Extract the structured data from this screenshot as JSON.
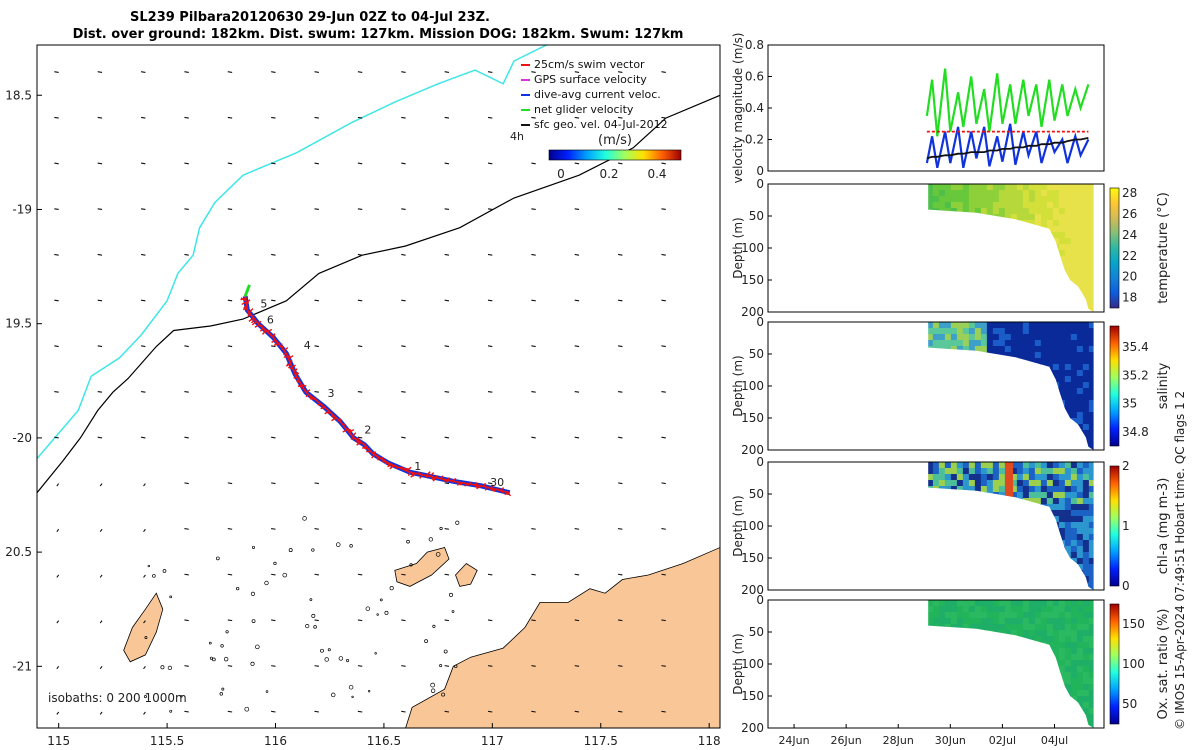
{
  "title_line1": "SL239 Pilbara20120630 29-Jun 02Z to 04-Jul 23Z.",
  "title_line2": "Dist. over ground: 182km. Dist. swum: 127km. Mission DOG: 182km. Swum: 127km",
  "footer_note": "© IMOS 15-Apr-2024 07:49:51 Hobart time. QC flags 1  2",
  "colors": {
    "land": "#f9c797",
    "coast_line": "#000000",
    "cyan_isobath": "#3ee6e6",
    "swim_vector": "#ee1111",
    "gps_velocity": "#dd33dd",
    "current_velocity": "#1133dd",
    "net_velocity": "#22dd22",
    "geo_velocity": "#111111"
  },
  "chart_data": [
    {
      "type": "map",
      "name": "track-map",
      "xlim": [
        114.9,
        118.05
      ],
      "ylim": [
        -21.27,
        -18.28
      ],
      "x_ticks": [
        115,
        115.5,
        116,
        116.5,
        117,
        117.5,
        118
      ],
      "x_tick_labels": [
        "115",
        "115.5",
        "116",
        "116.5",
        "117",
        "117.5",
        "118"
      ],
      "y_ticks": [
        -18.5,
        -19,
        -19.5,
        -20,
        -20.5,
        -21
      ],
      "y_tick_labels": [
        "18.5",
        "-19",
        "19.5",
        "-20",
        "20.5",
        "-21"
      ],
      "legend": {
        "items": [
          "25cm/s swim vector",
          "GPS surface velocity",
          "dive-avg current veloc.",
          "net glider velocity",
          "sfc geo. vel. 04-Jul-2012"
        ],
        "time_label": "4h",
        "colorbar_label": "(m/s)",
        "colorbar_ticks": [
          0,
          0.2,
          0.4
        ],
        "colorbar_tick_labels": [
          "0",
          "0.2",
          "0.4"
        ],
        "colorbar_range": [
          -0.05,
          0.5
        ]
      },
      "isobaths_label": "isobaths: 0    200   1000m",
      "track": [
        [
          117.08,
          -20.24
        ],
        [
          116.95,
          -20.21
        ],
        [
          116.82,
          -20.19
        ],
        [
          116.72,
          -20.17
        ],
        [
          116.62,
          -20.15
        ],
        [
          116.52,
          -20.11
        ],
        [
          116.45,
          -20.07
        ],
        [
          116.41,
          -20.03
        ],
        [
          116.36,
          -20.0
        ],
        [
          116.3,
          -19.93
        ],
        [
          116.22,
          -19.86
        ],
        [
          116.14,
          -19.8
        ],
        [
          116.09,
          -19.72
        ],
        [
          116.05,
          -19.63
        ],
        [
          115.99,
          -19.56
        ],
        [
          115.92,
          -19.5
        ],
        [
          115.87,
          -19.44
        ],
        [
          115.86,
          -19.38
        ]
      ],
      "day_markers": [
        {
          "label": "1",
          "lon": 116.64,
          "lat": -20.14
        },
        {
          "label": "2",
          "lon": 116.41,
          "lat": -19.98
        },
        {
          "label": "3",
          "lon": 116.24,
          "lat": -19.82
        },
        {
          "label": "4",
          "lon": 116.13,
          "lat": -19.61
        },
        {
          "label": "5",
          "lon": 115.93,
          "lat": -19.43
        },
        {
          "label": "6",
          "lon": 115.96,
          "lat": -19.5
        },
        {
          "label": "30",
          "lon": 116.99,
          "lat": -20.21
        }
      ],
      "isobath_200m": [
        [
          114.9,
          -20.09
        ],
        [
          115.0,
          -19.98
        ],
        [
          115.09,
          -19.88
        ],
        [
          115.15,
          -19.73
        ],
        [
          115.28,
          -19.65
        ],
        [
          115.38,
          -19.55
        ],
        [
          115.5,
          -19.4
        ],
        [
          115.55,
          -19.28
        ],
        [
          115.62,
          -19.2
        ],
        [
          115.65,
          -19.08
        ],
        [
          115.72,
          -18.97
        ],
        [
          115.85,
          -18.85
        ],
        [
          116.1,
          -18.75
        ],
        [
          116.35,
          -18.62
        ],
        [
          116.55,
          -18.53
        ],
        [
          116.75,
          -18.45
        ],
        [
          116.92,
          -18.39
        ],
        [
          117.05,
          -18.45
        ],
        [
          117.1,
          -18.35
        ],
        [
          117.25,
          -18.28
        ]
      ],
      "isobath_1000m": [
        [
          114.9,
          -20.24
        ],
        [
          115.02,
          -20.1
        ],
        [
          115.1,
          -20.0
        ],
        [
          115.18,
          -19.88
        ],
        [
          115.25,
          -19.8
        ],
        [
          115.32,
          -19.74
        ],
        [
          115.45,
          -19.6
        ],
        [
          115.53,
          -19.53
        ],
        [
          115.7,
          -19.51
        ],
        [
          115.85,
          -19.48
        ],
        [
          116.05,
          -19.4
        ],
        [
          116.2,
          -19.28
        ],
        [
          116.4,
          -19.2
        ],
        [
          116.6,
          -19.16
        ],
        [
          116.85,
          -19.08
        ],
        [
          117.1,
          -18.95
        ],
        [
          117.4,
          -18.85
        ],
        [
          117.65,
          -18.73
        ],
        [
          117.8,
          -18.6
        ],
        [
          118.05,
          -18.5
        ]
      ],
      "coast": [
        [
          116.6,
          -21.27
        ],
        [
          116.63,
          -21.18
        ],
        [
          116.78,
          -21.1
        ],
        [
          116.82,
          -21.0
        ],
        [
          116.9,
          -20.96
        ],
        [
          117.05,
          -20.92
        ],
        [
          117.15,
          -20.83
        ],
        [
          117.22,
          -20.72
        ],
        [
          117.35,
          -20.72
        ],
        [
          117.45,
          -20.66
        ],
        [
          117.52,
          -20.68
        ],
        [
          117.6,
          -20.62
        ],
        [
          117.72,
          -20.6
        ],
        [
          117.88,
          -20.55
        ],
        [
          118.05,
          -20.48
        ],
        [
          118.05,
          -21.27
        ]
      ],
      "islands": [
        [
          [
            115.3,
            -20.93
          ],
          [
            115.34,
            -20.83
          ],
          [
            115.4,
            -20.75
          ],
          [
            115.45,
            -20.68
          ],
          [
            115.48,
            -20.75
          ],
          [
            115.45,
            -20.85
          ],
          [
            115.4,
            -20.95
          ],
          [
            115.33,
            -20.98
          ]
        ],
        [
          [
            116.55,
            -20.58
          ],
          [
            116.65,
            -20.55
          ],
          [
            116.7,
            -20.5
          ],
          [
            116.78,
            -20.48
          ],
          [
            116.8,
            -20.53
          ],
          [
            116.72,
            -20.6
          ],
          [
            116.62,
            -20.65
          ],
          [
            116.56,
            -20.63
          ]
        ],
        [
          [
            116.83,
            -20.6
          ],
          [
            116.88,
            -20.55
          ],
          [
            116.93,
            -20.58
          ],
          [
            116.9,
            -20.64
          ],
          [
            116.85,
            -20.65
          ]
        ]
      ]
    },
    {
      "type": "line",
      "name": "velocity-panel",
      "ylabel": "velocity magnitude (m/s)",
      "ylim": [
        0,
        0.8
      ],
      "y_ticks": [
        0,
        0.2,
        0.4,
        0.6,
        0.8
      ],
      "y_tick_labels": [
        "0",
        "0.2",
        "0.4",
        "0.6",
        "0.8"
      ],
      "x": [
        29.1,
        29.3,
        29.5,
        29.8,
        30.0,
        30.3,
        30.5,
        30.8,
        31.0,
        31.3,
        31.5,
        31.8,
        32.0,
        32.3,
        32.5,
        32.8,
        33.0,
        33.3,
        33.5,
        33.8,
        34.0,
        34.3,
        34.5,
        34.8,
        35.0,
        35.3
      ],
      "series": [
        {
          "color": "#22dd22",
          "values": [
            0.35,
            0.58,
            0.22,
            0.65,
            0.25,
            0.5,
            0.28,
            0.6,
            0.3,
            0.52,
            0.25,
            0.62,
            0.3,
            0.55,
            0.3,
            0.58,
            0.35,
            0.55,
            0.28,
            0.58,
            0.32,
            0.55,
            0.35,
            0.52,
            0.4,
            0.55
          ]
        },
        {
          "color": "#1133dd",
          "values": [
            0.05,
            0.22,
            0.02,
            0.25,
            0.05,
            0.28,
            0.02,
            0.25,
            0.08,
            0.28,
            0.03,
            0.22,
            0.06,
            0.3,
            0.04,
            0.25,
            0.1,
            0.25,
            0.05,
            0.22,
            0.12,
            0.2,
            0.05,
            0.22,
            0.1,
            0.2
          ]
        },
        {
          "color": "#ee1111",
          "values": [
            0.25,
            0.25,
            0.25,
            0.25,
            0.25,
            0.25,
            0.25,
            0.25,
            0.25,
            0.25,
            0.25,
            0.25,
            0.25,
            0.25,
            0.25,
            0.25,
            0.25,
            0.25,
            0.25,
            0.25,
            0.25,
            0.25,
            0.25,
            0.25,
            0.25,
            0.25
          ]
        },
        {
          "color": "#111111",
          "values": [
            0.08,
            0.09,
            0.09,
            0.1,
            0.1,
            0.11,
            0.11,
            0.12,
            0.12,
            0.12,
            0.13,
            0.13,
            0.14,
            0.14,
            0.15,
            0.15,
            0.16,
            0.16,
            0.17,
            0.17,
            0.18,
            0.18,
            0.19,
            0.2,
            0.2,
            0.21
          ]
        }
      ]
    },
    {
      "type": "heatmap",
      "name": "temperature-panel",
      "ylabel": "Depth (m)",
      "colorbar_label": "temperature (°C)",
      "colorbar_ticks": [
        18,
        20,
        22,
        24,
        26,
        28
      ],
      "colorbar_range": [
        17,
        28.5
      ],
      "y_ticks": [
        0,
        50,
        100,
        150,
        200
      ],
      "y_tick_labels": [
        "0",
        "50",
        "100",
        "150",
        "200"
      ],
      "colors": [
        "#4dbf4a",
        "#68c83c",
        "#8ed03a",
        "#b6d83a",
        "#d3e03a",
        "#e8e24a"
      ]
    },
    {
      "type": "heatmap",
      "name": "salinity-panel",
      "ylabel": "Depth (m)",
      "colorbar_label": "salinity",
      "colorbar_ticks": [
        34.8,
        35,
        35.2,
        35.4
      ],
      "colorbar_range": [
        34.7,
        35.55
      ],
      "y_ticks": [
        0,
        50,
        100,
        150,
        200
      ],
      "y_tick_labels": [
        "0",
        "50",
        "100",
        "150",
        "200"
      ],
      "colors": [
        "#0a2a9a",
        "#1a5cc8",
        "#3ca0c8",
        "#5ac89a",
        "#9ad05a"
      ]
    },
    {
      "type": "heatmap",
      "name": "chla-panel",
      "ylabel": "Depth (m)",
      "colorbar_label": "chl-a (mg m-3)",
      "colorbar_ticks": [
        0,
        1,
        2
      ],
      "colorbar_range": [
        0,
        2
      ],
      "y_ticks": [
        0,
        50,
        100,
        150,
        200
      ],
      "y_tick_labels": [
        "0",
        "50",
        "100",
        "150",
        "200"
      ],
      "colors": [
        "#12308c",
        "#1c62c4",
        "#2c96cf",
        "#4cbf9a",
        "#9ccf4e",
        "#e8d42e",
        "#e04a20"
      ]
    },
    {
      "type": "heatmap",
      "name": "oxygen-panel",
      "ylabel": "Depth (m)",
      "colorbar_label": "Ox. sat. ratio (%)",
      "colorbar_ticks": [
        50,
        100,
        150
      ],
      "colorbar_range": [
        25,
        175
      ],
      "y_ticks": [
        0,
        50,
        100,
        150,
        200
      ],
      "y_tick_labels": [
        "0",
        "50",
        "100",
        "150",
        "200"
      ],
      "x_ticks": [
        24,
        26,
        28,
        30,
        32,
        34
      ],
      "x_tick_labels": [
        "24Jun",
        "26Jun",
        "28Jun",
        "30Jun",
        "02Jul",
        "04Jul"
      ],
      "xlim": [
        23,
        35.9
      ],
      "colors": [
        "#22b45a",
        "#2ab860",
        "#1eae68"
      ]
    }
  ]
}
